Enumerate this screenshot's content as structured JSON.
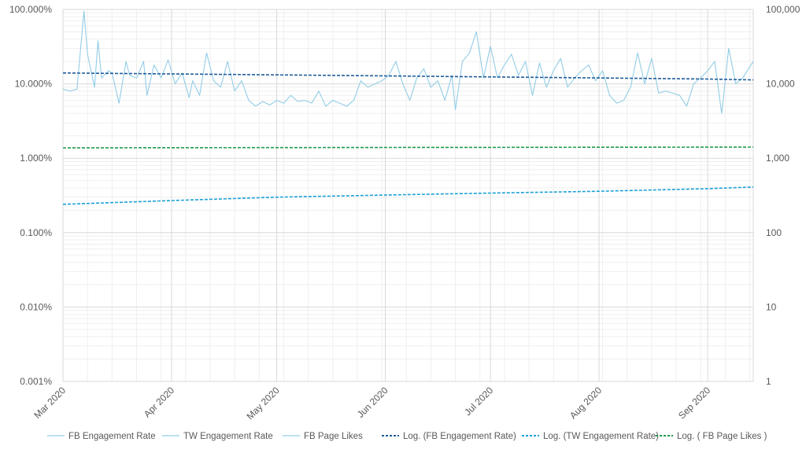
{
  "chart_data": {
    "type": "line",
    "title": "",
    "xlabel": "",
    "ylabel": "",
    "x_range": [
      "2020-03-01",
      "2020-09-14"
    ],
    "categories": [
      "Mar 2020",
      "Apr 2020",
      "May 2020",
      "Jun 2020",
      "Jul 2020",
      "Aug 2020",
      "Sep 2020"
    ],
    "category_dates": [
      "2020-03-01",
      "2020-04-01",
      "2020-05-01",
      "2020-06-01",
      "2020-07-01",
      "2020-08-01",
      "2020-09-01"
    ],
    "y_left": {
      "scale": "log",
      "ylim": [
        1e-05,
        1
      ],
      "tick_values": [
        1,
        0.1,
        0.01,
        0.001,
        0.0001,
        1e-05
      ],
      "tick_labels": [
        "100.000%",
        "10.000%",
        "1.000%",
        "0.100%",
        "0.010%",
        "0.001%"
      ]
    },
    "y_right": {
      "scale": "log",
      "ylim": [
        1,
        100000
      ],
      "tick_values": [
        100000,
        10000,
        1000,
        100,
        10,
        1
      ],
      "tick_labels": [
        "100,000",
        "10,000",
        "1,000",
        "100",
        "10",
        "1"
      ]
    },
    "grid": true,
    "legend_position": "bottom",
    "colors": {
      "raw": "#92cde6",
      "fb_trend": "#1f5c99",
      "tw_trend": "#1aa0d8",
      "likes_trend": "#1f9b4f",
      "grid_major": "#d9d9d9",
      "grid_minor": "#efefef",
      "text": "#595959"
    },
    "series": [
      {
        "name": "FB Engagement Rate",
        "axis": "left",
        "style": "solid",
        "x": [
          "2020-03-01",
          "2020-03-03",
          "2020-03-05",
          "2020-03-07",
          "2020-03-08",
          "2020-03-10",
          "2020-03-11",
          "2020-03-12",
          "2020-03-14",
          "2020-03-15",
          "2020-03-17",
          "2020-03-19",
          "2020-03-20",
          "2020-03-22",
          "2020-03-24",
          "2020-03-25",
          "2020-03-27",
          "2020-03-29",
          "2020-03-31",
          "2020-04-02",
          "2020-04-04",
          "2020-04-06",
          "2020-04-07",
          "2020-04-09",
          "2020-04-11",
          "2020-04-13",
          "2020-04-15",
          "2020-04-17",
          "2020-04-19",
          "2020-04-21",
          "2020-04-23",
          "2020-04-25",
          "2020-04-27",
          "2020-04-29",
          "2020-05-01",
          "2020-05-03",
          "2020-05-05",
          "2020-05-07",
          "2020-05-09",
          "2020-05-11",
          "2020-05-13",
          "2020-05-15",
          "2020-05-17",
          "2020-05-19",
          "2020-05-21",
          "2020-05-23",
          "2020-05-25",
          "2020-05-27",
          "2020-05-29",
          "2020-05-31",
          "2020-06-02",
          "2020-06-04",
          "2020-06-06",
          "2020-06-08",
          "2020-06-10",
          "2020-06-12",
          "2020-06-14",
          "2020-06-16",
          "2020-06-18",
          "2020-06-20",
          "2020-06-21",
          "2020-06-23",
          "2020-06-25",
          "2020-06-27",
          "2020-06-29",
          "2020-07-01",
          "2020-07-03",
          "2020-07-05",
          "2020-07-07",
          "2020-07-09",
          "2020-07-11",
          "2020-07-13",
          "2020-07-15",
          "2020-07-17",
          "2020-07-19",
          "2020-07-21",
          "2020-07-23",
          "2020-07-25",
          "2020-07-27",
          "2020-07-29",
          "2020-07-31",
          "2020-08-02",
          "2020-08-04",
          "2020-08-06",
          "2020-08-08",
          "2020-08-10",
          "2020-08-12",
          "2020-08-14",
          "2020-08-16",
          "2020-08-18",
          "2020-08-20",
          "2020-08-22",
          "2020-08-24",
          "2020-08-26",
          "2020-08-28",
          "2020-08-30",
          "2020-09-01",
          "2020-09-03",
          "2020-09-05",
          "2020-09-07",
          "2020-09-09",
          "2020-09-11",
          "2020-09-14"
        ],
        "values": [
          0.085,
          0.08,
          0.085,
          0.95,
          0.25,
          0.09,
          0.38,
          0.12,
          0.15,
          0.14,
          0.055,
          0.2,
          0.13,
          0.12,
          0.2,
          0.07,
          0.18,
          0.12,
          0.21,
          0.1,
          0.14,
          0.065,
          0.11,
          0.07,
          0.26,
          0.11,
          0.09,
          0.2,
          0.08,
          0.11,
          0.06,
          0.05,
          0.058,
          0.052,
          0.06,
          0.055,
          0.07,
          0.058,
          0.06,
          0.055,
          0.08,
          0.05,
          0.06,
          0.055,
          0.05,
          0.06,
          0.11,
          0.09,
          0.1,
          0.11,
          0.13,
          0.2,
          0.1,
          0.06,
          0.12,
          0.16,
          0.09,
          0.11,
          0.06,
          0.13,
          0.045,
          0.2,
          0.26,
          0.5,
          0.12,
          0.32,
          0.12,
          0.18,
          0.25,
          0.13,
          0.2,
          0.07,
          0.19,
          0.09,
          0.15,
          0.22,
          0.09,
          0.12,
          0.15,
          0.18,
          0.11,
          0.15,
          0.07,
          0.055,
          0.06,
          0.09,
          0.26,
          0.1,
          0.22,
          0.075,
          0.08,
          0.075,
          0.07,
          0.05,
          0.1,
          0.12,
          0.15,
          0.2,
          0.04,
          0.3,
          0.1,
          0.12,
          0.2
        ]
      },
      {
        "name": "TW Engagement Rate",
        "axis": "left",
        "style": "solid",
        "x": [],
        "values": []
      },
      {
        "name": "FB Page Likes",
        "axis": "right",
        "style": "solid",
        "x": [],
        "values": []
      },
      {
        "name": "Log. (FB Engagement Rate)",
        "axis": "left",
        "style": "dashed",
        "x": [
          "2020-03-01",
          "2020-04-01",
          "2020-05-01",
          "2020-06-01",
          "2020-07-01",
          "2020-08-01",
          "2020-09-01",
          "2020-09-14"
        ],
        "values": [
          0.14,
          0.136,
          0.132,
          0.128,
          0.124,
          0.12,
          0.116,
          0.113
        ]
      },
      {
        "name": "Log. (TW Engagement Rate)",
        "axis": "left",
        "style": "dashed",
        "x": [
          "2020-03-01",
          "2020-04-01",
          "2020-05-01",
          "2020-06-01",
          "2020-07-01",
          "2020-08-01",
          "2020-09-01",
          "2020-09-14"
        ],
        "values": [
          0.0024,
          0.0027,
          0.003,
          0.0032,
          0.0034,
          0.0036,
          0.0039,
          0.0041
        ]
      },
      {
        "name": "Log. ( FB Page Likes )",
        "axis": "right",
        "style": "dashed",
        "x": [
          "2020-03-01",
          "2020-04-01",
          "2020-05-01",
          "2020-06-01",
          "2020-07-01",
          "2020-08-01",
          "2020-09-01",
          "2020-09-14"
        ],
        "values": [
          1380,
          1385,
          1390,
          1395,
          1400,
          1405,
          1410,
          1412
        ]
      }
    ]
  }
}
